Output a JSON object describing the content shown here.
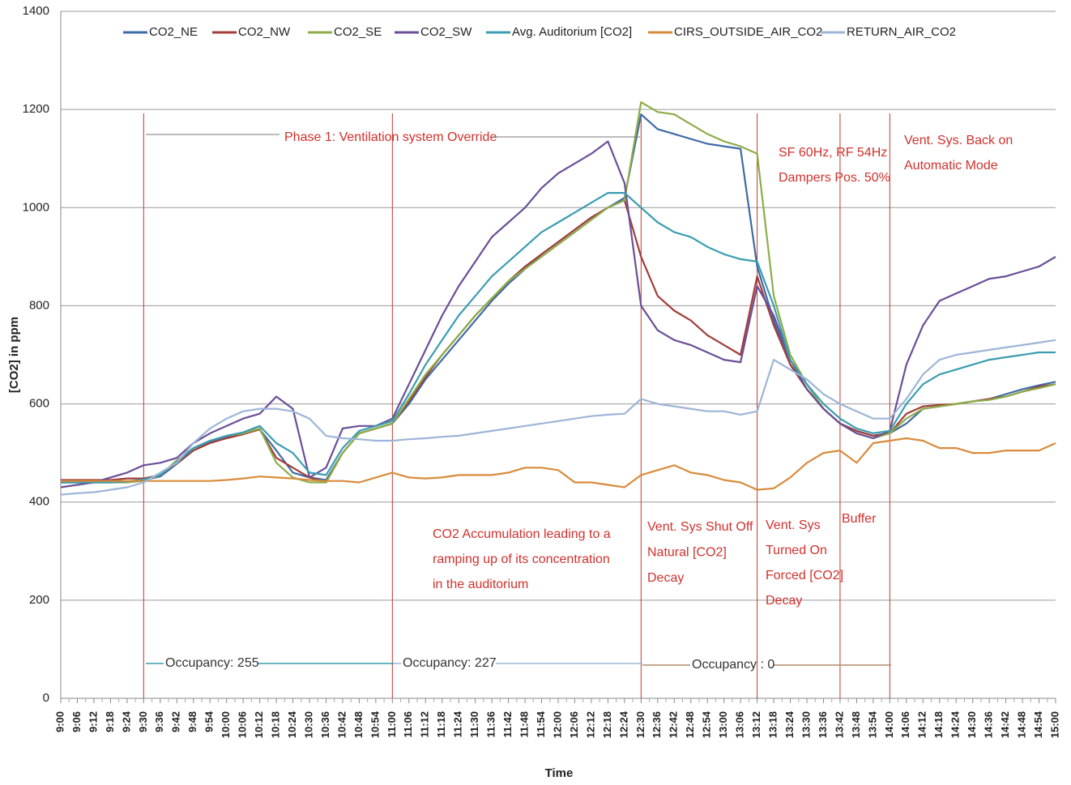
{
  "chart_data": {
    "type": "line",
    "xlabel": "Time",
    "ylabel": "[CO2] in ppm",
    "ylim": [
      0,
      1400
    ],
    "yticks": [
      0,
      200,
      400,
      600,
      800,
      1000,
      1200,
      1400
    ],
    "grid": true,
    "legend": "top",
    "categories": [
      "9:00",
      "9:06",
      "9:12",
      "9:18",
      "9:24",
      "9:30",
      "9:36",
      "9:42",
      "9:48",
      "9:54",
      "10:00",
      "10:06",
      "10:12",
      "10:18",
      "10:24",
      "10:30",
      "10:36",
      "10:42",
      "10:48",
      "10:54",
      "11:00",
      "11:06",
      "11:12",
      "11:18",
      "11:24",
      "11:30",
      "11:36",
      "11:42",
      "11:48",
      "11:54",
      "12:00",
      "12:06",
      "12:12",
      "12:18",
      "12:24",
      "12:30",
      "12:36",
      "12:42",
      "12:48",
      "12:54",
      "13:00",
      "13:06",
      "13:12",
      "13:18",
      "13:24",
      "13:30",
      "13:36",
      "13:42",
      "13:48",
      "13:54",
      "14:00",
      "14:06",
      "14:12",
      "14:18",
      "14:24",
      "14:30",
      "14:36",
      "14:42",
      "14:48",
      "14:54",
      "15:00"
    ],
    "series": [
      {
        "name": "CO2_NE",
        "color": "#3e6aa5",
        "values": [
          440,
          440,
          440,
          440,
          442,
          445,
          452,
          478,
          505,
          522,
          532,
          540,
          548,
          505,
          460,
          450,
          445,
          500,
          540,
          550,
          560,
          600,
          650,
          690,
          730,
          770,
          810,
          845,
          875,
          905,
          930,
          955,
          980,
          1000,
          1020,
          1190,
          1160,
          1150,
          1140,
          1130,
          1125,
          1120,
          880,
          770,
          680,
          630,
          590,
          560,
          545,
          535,
          540,
          560,
          590,
          595,
          600,
          605,
          610,
          620,
          630,
          638,
          645
        ]
      },
      {
        "name": "CO2_NW",
        "color": "#a23d39",
        "values": [
          445,
          445,
          445,
          445,
          448,
          448,
          455,
          480,
          505,
          520,
          530,
          538,
          548,
          490,
          470,
          450,
          440,
          500,
          540,
          550,
          560,
          605,
          655,
          700,
          740,
          780,
          815,
          850,
          880,
          905,
          930,
          955,
          980,
          1000,
          1015,
          900,
          820,
          790,
          770,
          740,
          720,
          700,
          860,
          760,
          680,
          630,
          590,
          560,
          545,
          535,
          540,
          580,
          595,
          598,
          600,
          605,
          610,
          615,
          625,
          635,
          640
        ]
      },
      {
        "name": "CO2_SE",
        "color": "#8cad48",
        "values": [
          440,
          440,
          440,
          440,
          440,
          443,
          455,
          485,
          510,
          525,
          535,
          540,
          550,
          480,
          450,
          440,
          440,
          500,
          540,
          550,
          560,
          610,
          660,
          700,
          740,
          780,
          815,
          850,
          875,
          900,
          925,
          950,
          975,
          1000,
          1015,
          1215,
          1195,
          1190,
          1170,
          1150,
          1135,
          1125,
          1110,
          820,
          700,
          640,
          590,
          560,
          540,
          530,
          540,
          570,
          590,
          595,
          600,
          605,
          608,
          615,
          625,
          632,
          640
        ]
      },
      {
        "name": "CO2_SW",
        "color": "#6b4e97",
        "values": [
          430,
          435,
          440,
          450,
          460,
          475,
          480,
          490,
          520,
          540,
          555,
          570,
          580,
          615,
          590,
          450,
          470,
          550,
          555,
          555,
          570,
          640,
          710,
          780,
          840,
          890,
          940,
          970,
          1000,
          1040,
          1070,
          1090,
          1110,
          1135,
          1050,
          800,
          750,
          730,
          720,
          705,
          690,
          685,
          840,
          780,
          690,
          630,
          590,
          560,
          540,
          530,
          545,
          680,
          760,
          810,
          825,
          840,
          855,
          860,
          870,
          880,
          900
        ]
      },
      {
        "name": "Avg. Auditorium [CO2]",
        "color": "#3a9db0",
        "values": [
          440,
          440,
          440,
          440,
          442,
          446,
          455,
          482,
          510,
          525,
          535,
          542,
          555,
          520,
          500,
          460,
          455,
          510,
          545,
          555,
          565,
          620,
          680,
          730,
          780,
          820,
          860,
          890,
          920,
          950,
          970,
          990,
          1010,
          1030,
          1030,
          1000,
          970,
          950,
          940,
          920,
          905,
          895,
          890,
          800,
          690,
          640,
          600,
          570,
          550,
          540,
          545,
          600,
          640,
          660,
          670,
          680,
          690,
          695,
          700,
          705,
          705
        ]
      },
      {
        "name": "CIRS_OUTSIDE_AIR_CO2",
        "color": "#d98b3b",
        "values": [
          443,
          443,
          443,
          443,
          443,
          443,
          443,
          443,
          443,
          443,
          445,
          448,
          452,
          450,
          448,
          445,
          443,
          443,
          440,
          450,
          460,
          450,
          448,
          450,
          455,
          455,
          455,
          460,
          470,
          470,
          465,
          440,
          440,
          435,
          430,
          455,
          465,
          475,
          460,
          455,
          445,
          440,
          425,
          428,
          450,
          480,
          500,
          505,
          480,
          520,
          525,
          530,
          525,
          510,
          510,
          500,
          500,
          505,
          505,
          505,
          520
        ]
      },
      {
        "name": "RETURN_AIR_CO2",
        "color": "#9db5d8",
        "values": [
          415,
          418,
          420,
          425,
          430,
          440,
          460,
          480,
          520,
          550,
          570,
          585,
          590,
          590,
          585,
          570,
          535,
          530,
          528,
          525,
          525,
          528,
          530,
          533,
          535,
          540,
          545,
          550,
          555,
          560,
          565,
          570,
          575,
          578,
          580,
          610,
          600,
          595,
          590,
          585,
          585,
          578,
          585,
          690,
          670,
          650,
          620,
          600,
          585,
          570,
          570,
          610,
          660,
          690,
          700,
          705,
          710,
          715,
          720,
          725,
          730
        ]
      }
    ],
    "vlines": [
      "9:30",
      "11:00",
      "12:30",
      "13:12",
      "13:42",
      "14:00"
    ],
    "annotations": [
      {
        "lines": [
          "Phase 1: Ventilation system Override"
        ]
      },
      {
        "lines": [
          "CO2 Accumulation leading to a",
          "ramping up of its concentration",
          "in the auditorium"
        ]
      },
      {
        "lines": [
          "Vent. Sys Shut Off",
          "Natural [CO2]",
          "Decay"
        ]
      },
      {
        "lines": [
          "Vent. Sys",
          "Turned On",
          "Forced [CO2]",
          "Decay"
        ]
      },
      {
        "lines": [
          "Buffer"
        ]
      },
      {
        "lines": [
          "SF 60Hz, RF 54Hz",
          "Dampers Pos. 50%"
        ]
      },
      {
        "lines": [
          "Vent. Sys. Back on",
          "Automatic Mode"
        ]
      }
    ],
    "occupancy": [
      "Occupancy: 255",
      "Occupancy: 227",
      "Occupancy : 0"
    ]
  }
}
